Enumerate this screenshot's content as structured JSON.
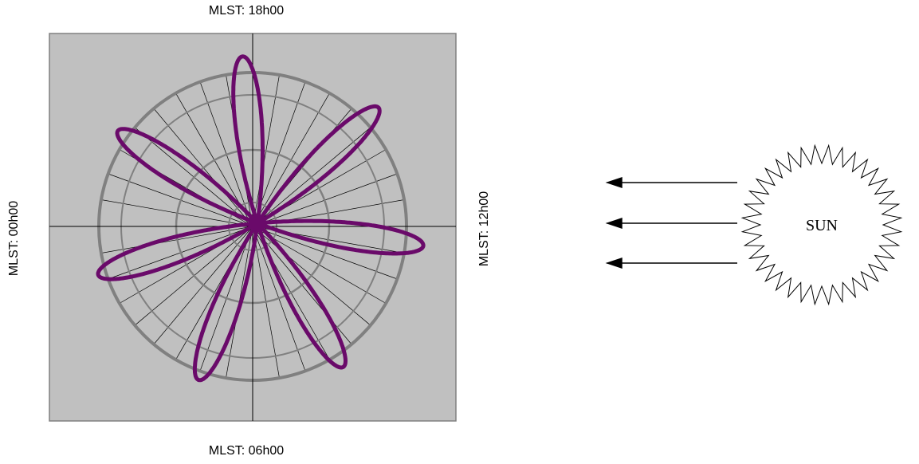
{
  "labels": {
    "top": "MLST:  18h00",
    "bottom": "MLST:  06h00",
    "left": "MLST: 00h00",
    "right": "MLST: 12h00"
  },
  "sun": "SUN"
}
